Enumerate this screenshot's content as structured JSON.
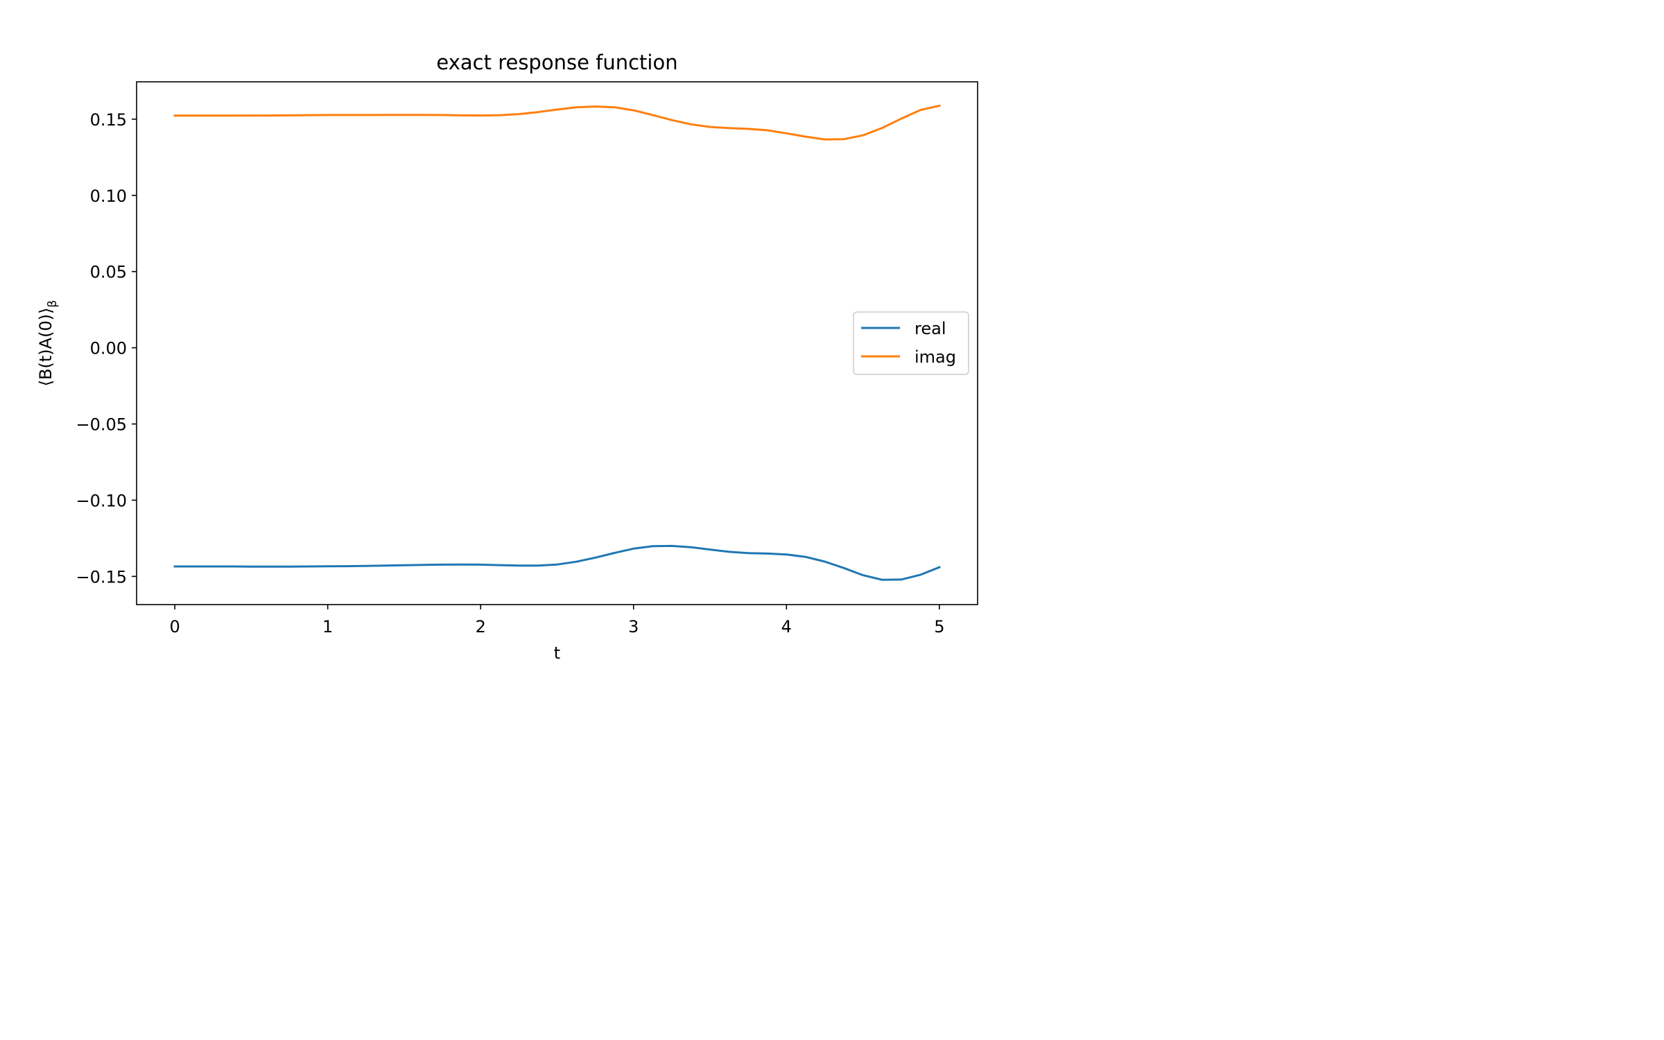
{
  "chart_data": {
    "type": "line",
    "title": "exact response function",
    "xlabel": "t",
    "ylabel": "⟨B(t)A(0)⟩β",
    "ylabel_main": "⟨B(t)A(0)⟩",
    "ylabel_sub": "β",
    "xlim": [
      -0.25,
      5.25
    ],
    "ylim": [
      -0.1685,
      0.1745
    ],
    "xticks": [
      0,
      1,
      2,
      3,
      4,
      5
    ],
    "xtick_labels": [
      "0",
      "1",
      "2",
      "3",
      "4",
      "5"
    ],
    "yticks": [
      0.15,
      0.1,
      0.05,
      0.0,
      -0.05,
      -0.1,
      -0.15
    ],
    "ytick_labels": [
      "0.15",
      "0.10",
      "0.05",
      "0.00",
      "−0.05",
      "−0.10",
      "−0.15"
    ],
    "grid": false,
    "legend_position": "center-right",
    "x": [
      0,
      0.125,
      0.25,
      0.375,
      0.5,
      0.625,
      0.75,
      0.875,
      1.0,
      1.125,
      1.25,
      1.375,
      1.5,
      1.625,
      1.75,
      1.875,
      2.0,
      2.125,
      2.25,
      2.375,
      2.5,
      2.625,
      2.75,
      2.875,
      3.0,
      3.125,
      3.25,
      3.375,
      3.5,
      3.625,
      3.75,
      3.875,
      4.0,
      4.125,
      4.25,
      4.375,
      4.5,
      4.625,
      4.75,
      4.875,
      5.0
    ],
    "series": [
      {
        "name": "real",
        "color": "#1f77b4",
        "values": [
          -0.1435,
          -0.1435,
          -0.1435,
          -0.1435,
          -0.1436,
          -0.1436,
          -0.1436,
          -0.1435,
          -0.1434,
          -0.1433,
          -0.1431,
          -0.1429,
          -0.1427,
          -0.1425,
          -0.1423,
          -0.1422,
          -0.1423,
          -0.1426,
          -0.1429,
          -0.1429,
          -0.1422,
          -0.1404,
          -0.1377,
          -0.1346,
          -0.1318,
          -0.1302,
          -0.13,
          -0.1309,
          -0.1324,
          -0.1339,
          -0.1347,
          -0.135,
          -0.1356,
          -0.1372,
          -0.1403,
          -0.1445,
          -0.1492,
          -0.1522,
          -0.1521,
          -0.149,
          -0.144
        ]
      },
      {
        "name": "imag",
        "color": "#ff7f0e",
        "values": [
          0.1523,
          0.1523,
          0.1523,
          0.1523,
          0.1524,
          0.1524,
          0.1525,
          0.1526,
          0.1527,
          0.1527,
          0.1527,
          0.1528,
          0.1528,
          0.1528,
          0.1527,
          0.1525,
          0.1524,
          0.1526,
          0.1533,
          0.1546,
          0.1563,
          0.1578,
          0.1583,
          0.1578,
          0.1558,
          0.1527,
          0.1494,
          0.1466,
          0.1449,
          0.1441,
          0.1436,
          0.1427,
          0.1407,
          0.1385,
          0.1367,
          0.1369,
          0.1394,
          0.1442,
          0.1503,
          0.156,
          0.1588
        ]
      }
    ]
  }
}
